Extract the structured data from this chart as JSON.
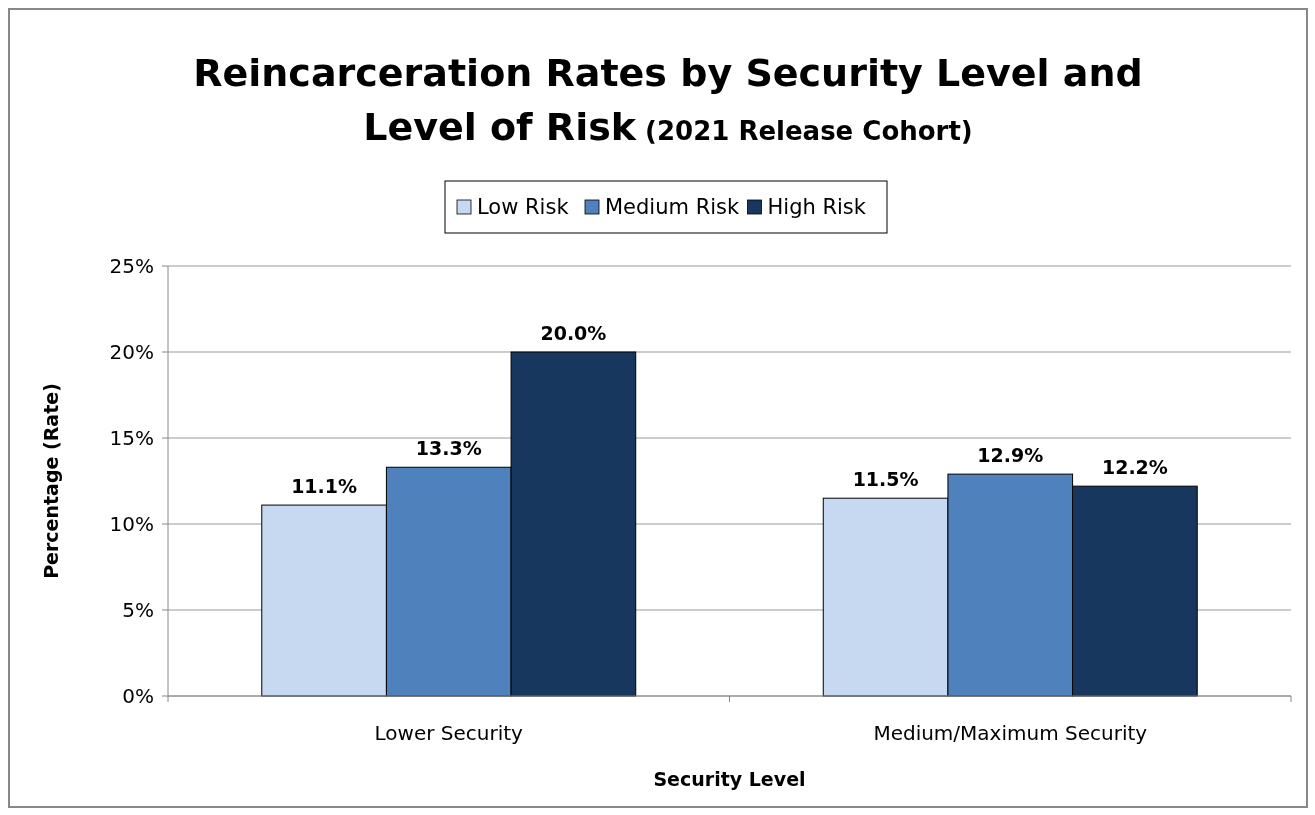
{
  "chart_data": {
    "type": "bar",
    "title": "Reincarceration Rates by Security Level and Level of Risk",
    "subtitle": "(2021 Release Cohort)",
    "xlabel": "Security Level",
    "ylabel": "Percentage (Rate)",
    "categories": [
      "Lower Security",
      "Medium/Maximum Security"
    ],
    "series": [
      {
        "name": "Low Risk",
        "color": "#c6d9f0",
        "values": [
          11.1,
          11.5
        ],
        "value_labels": [
          "11.1%",
          "11.5%"
        ]
      },
      {
        "name": "Medium Risk",
        "color": "#4f81bd",
        "values": [
          13.3,
          12.9
        ],
        "value_labels": [
          "13.3%",
          "12.9%"
        ]
      },
      {
        "name": "High Risk",
        "color": "#17375e",
        "values": [
          20.0,
          12.2
        ],
        "value_labels": [
          "20.0%",
          "12.2%"
        ]
      }
    ],
    "ylim": [
      0,
      25
    ],
    "yticks": [
      {
        "value": 0,
        "label": "0%"
      },
      {
        "value": 5,
        "label": "5%"
      },
      {
        "value": 10,
        "label": "10%"
      },
      {
        "value": 15,
        "label": "15%"
      },
      {
        "value": 20,
        "label": "20%"
      },
      {
        "value": 25,
        "label": "25%"
      }
    ],
    "grid": "y",
    "legend": "top"
  }
}
